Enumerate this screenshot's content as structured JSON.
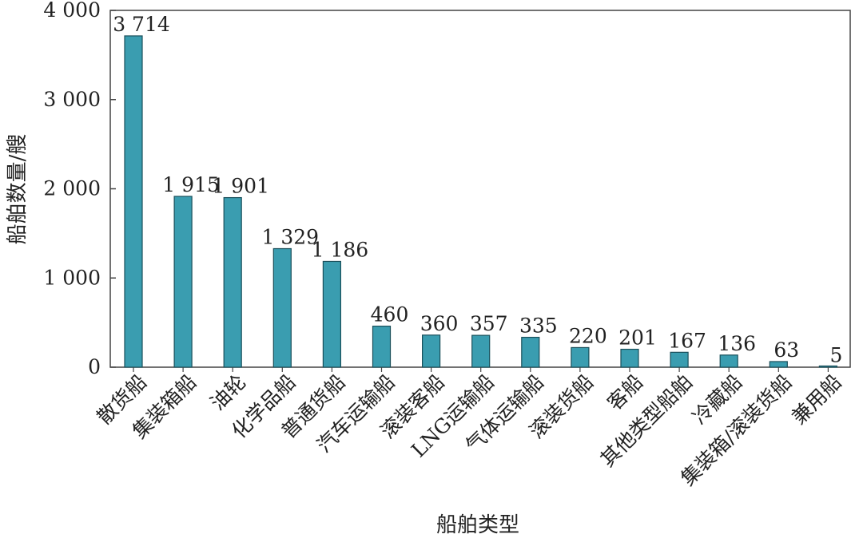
{
  "chart_data": {
    "type": "bar",
    "title": "",
    "xlabel": "船舶类型",
    "ylabel": "船舶数量/艘",
    "ylim": [
      0,
      4000
    ],
    "yticks": [
      0,
      1000,
      2000,
      3000,
      4000
    ],
    "ytick_labels": [
      "0",
      "1 000",
      "2 000",
      "3 000",
      "4 000"
    ],
    "grid": false,
    "legend": "none",
    "bar_color": "#3a9db0",
    "bar_edge_color": "#1a4f5a",
    "categories": [
      "散货船",
      "集装箱船",
      "油轮",
      "化学品船",
      "普通货船",
      "汽车运输船",
      "滚装客船",
      "LNG运输船",
      "气体运输船",
      "滚装货船",
      "客船",
      "其他类型船舶",
      "冷藏船",
      "集装箱/滚装货船",
      "兼用船"
    ],
    "values": [
      3714,
      1915,
      1901,
      1329,
      1186,
      460,
      360,
      357,
      335,
      220,
      201,
      167,
      136,
      63,
      5
    ],
    "value_labels": [
      "3 714",
      "1 915",
      "1 901",
      "1 329",
      "1 186",
      "460",
      "360",
      "357",
      "335",
      "220",
      "201",
      "167",
      "136",
      "63",
      "5"
    ]
  }
}
